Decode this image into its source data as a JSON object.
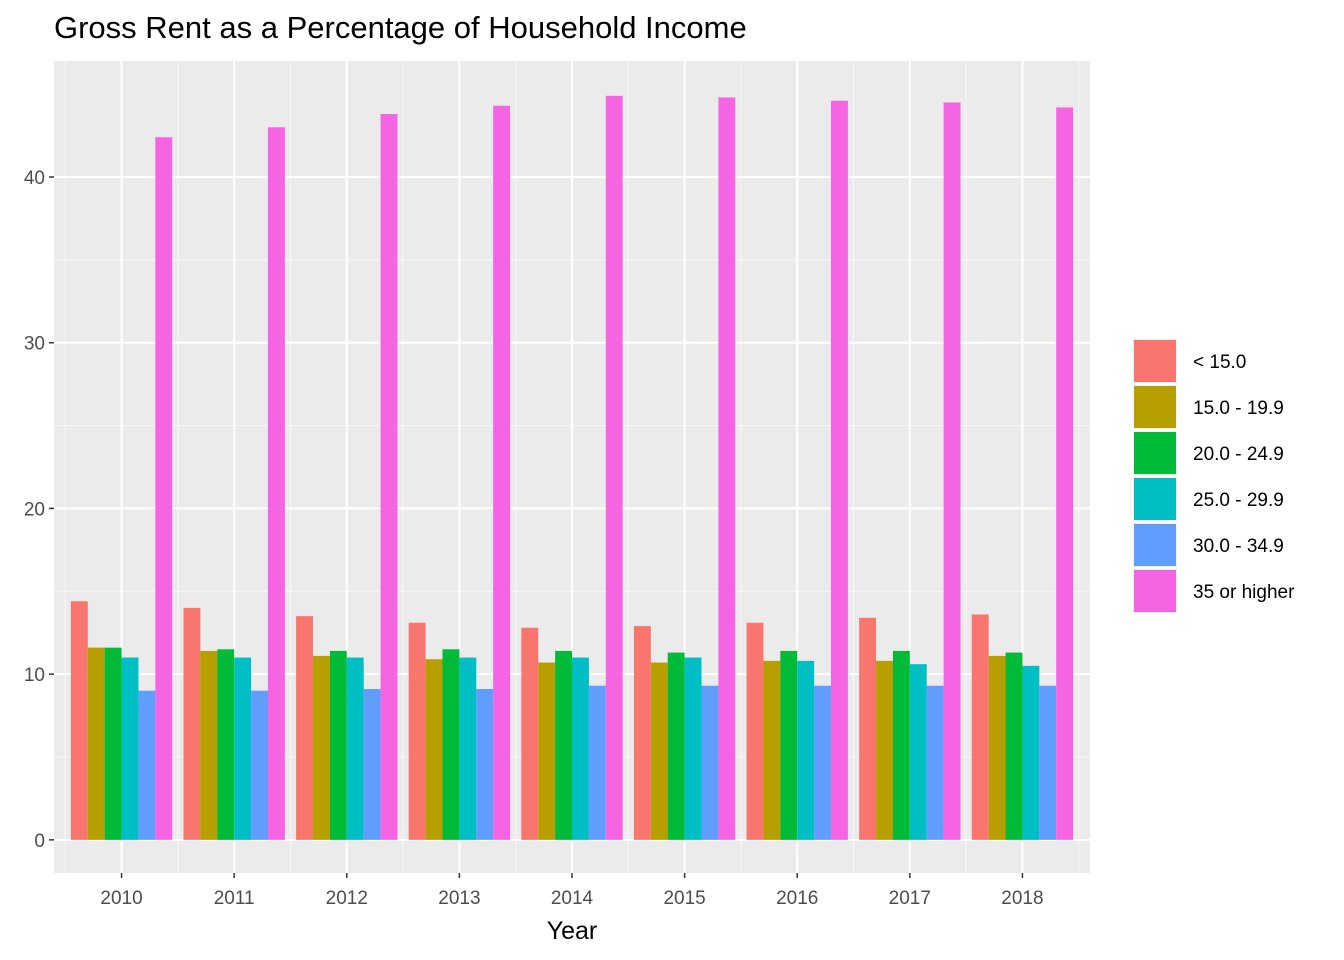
{
  "chart_data": {
    "type": "bar",
    "title": "Gross Rent as a Percentage of Household Income",
    "xlabel": "Year",
    "ylabel": "",
    "ylim": [
      -2,
      47
    ],
    "yticks": [
      0,
      10,
      20,
      30,
      40
    ],
    "grid": true,
    "legend_position": "right",
    "categories": [
      "2010",
      "2011",
      "2012",
      "2013",
      "2014",
      "2015",
      "2016",
      "2017",
      "2018"
    ],
    "series": [
      {
        "name": "< 15.0",
        "color": "#F8766D",
        "values": [
          14.4,
          14.0,
          13.5,
          13.1,
          12.8,
          12.9,
          13.1,
          13.4,
          13.6
        ]
      },
      {
        "name": "15.0 - 19.9",
        "color": "#B79F00",
        "values": [
          11.6,
          11.4,
          11.1,
          10.9,
          10.7,
          10.7,
          10.8,
          10.8,
          11.1
        ]
      },
      {
        "name": "20.0 - 24.9",
        "color": "#00BA38",
        "values": [
          11.6,
          11.5,
          11.4,
          11.5,
          11.4,
          11.3,
          11.4,
          11.4,
          11.3
        ]
      },
      {
        "name": "25.0 - 29.9",
        "color": "#00BFC4",
        "values": [
          11.0,
          11.0,
          11.0,
          11.0,
          11.0,
          11.0,
          10.8,
          10.6,
          10.5
        ]
      },
      {
        "name": "30.0 - 34.9",
        "color": "#619CFF",
        "values": [
          9.0,
          9.0,
          9.1,
          9.1,
          9.3,
          9.3,
          9.3,
          9.3,
          9.3
        ]
      },
      {
        "name": "35 or higher",
        "color": "#F564E3",
        "values": [
          42.4,
          43.0,
          43.8,
          44.3,
          44.9,
          44.8,
          44.6,
          44.5,
          44.2
        ]
      }
    ]
  }
}
